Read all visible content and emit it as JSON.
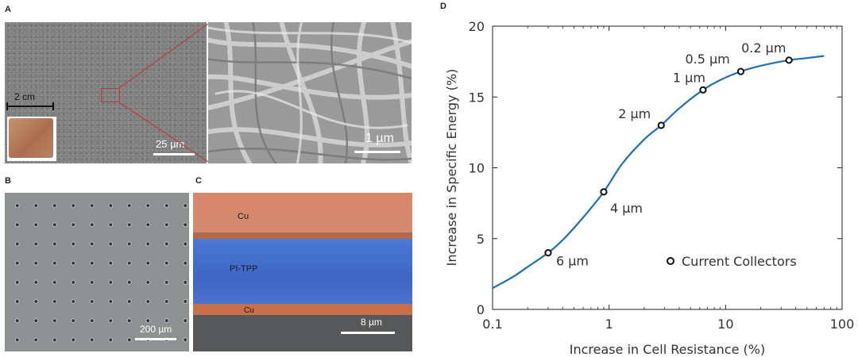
{
  "panels": {
    "a": {
      "letter": "A",
      "scale_low": "2 cm",
      "scale_mid": "25 µm",
      "scale_high": "1 µm"
    },
    "b": {
      "letter": "B",
      "scale": "200 µm"
    },
    "c": {
      "letter": "C",
      "layer_top": "Cu",
      "layer_mid": "PI-TPP",
      "layer_bottom": "Cu",
      "scale": "8 µm"
    },
    "d": {
      "letter": "D"
    }
  },
  "chart_data": {
    "type": "line",
    "xlabel": "Increase in Cell Resistance (%)",
    "ylabel": "Increase in Specific Energy (%)",
    "xscale": "log",
    "xlim": [
      0.1,
      100
    ],
    "ylim": [
      0,
      20
    ],
    "x_ticks": [
      0.1,
      1,
      10,
      100
    ],
    "x_tick_labels": [
      "0.1",
      "1",
      "10",
      "100"
    ],
    "y_ticks": [
      0,
      5,
      10,
      15,
      20
    ],
    "y_tick_labels": [
      "0",
      "5",
      "10",
      "15",
      "20"
    ],
    "curve": {
      "x": [
        0.1,
        0.15,
        0.2,
        0.3,
        0.4,
        0.6,
        0.9,
        1.3,
        2,
        2.8,
        4,
        6.4,
        9,
        13.5,
        20,
        35,
        50,
        70
      ],
      "y": [
        1.5,
        2.3,
        3.0,
        4.0,
        4.9,
        6.5,
        8.3,
        10.3,
        12.0,
        13.0,
        14.2,
        15.5,
        16.2,
        16.8,
        17.2,
        17.6,
        17.75,
        17.9
      ],
      "color": "#1f6fb5"
    },
    "series": [
      {
        "name": "Current Collectors",
        "x": [
          0.3,
          0.9,
          2.8,
          6.4,
          13.5,
          35
        ],
        "y": [
          4.0,
          8.3,
          13.0,
          15.5,
          16.8,
          17.6
        ],
        "labels": [
          "6 µm",
          "4 µm",
          "2 µm",
          "1 µm",
          "0.5 µm",
          "0.2 µm"
        ]
      }
    ],
    "legend_position": "bottom-right"
  }
}
